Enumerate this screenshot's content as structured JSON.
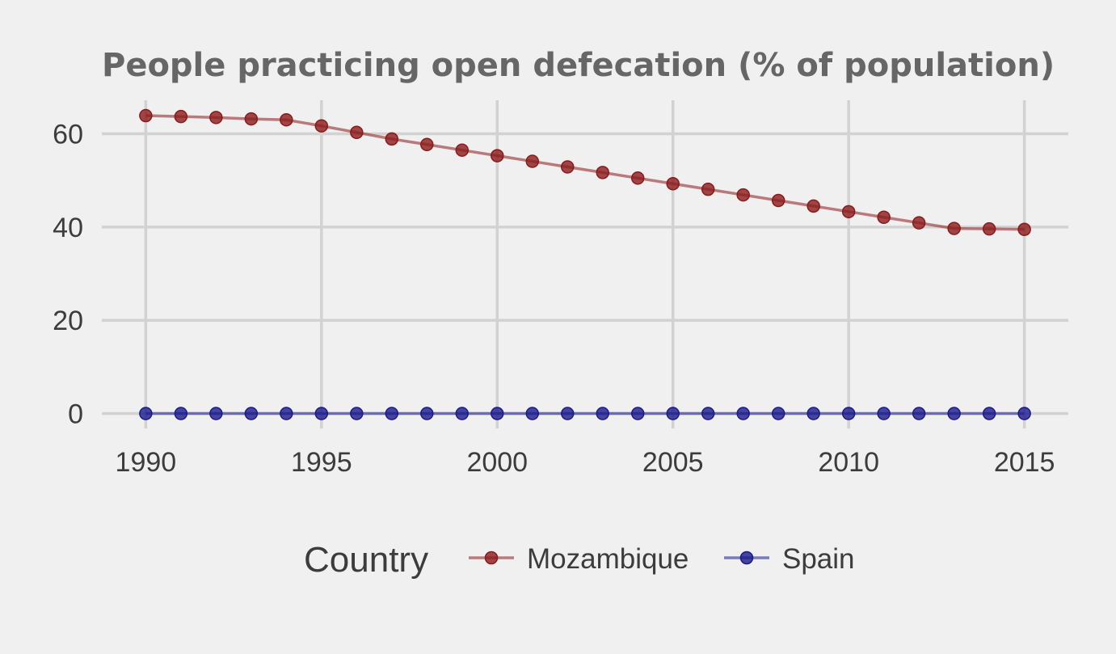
{
  "chart_data": {
    "type": "line",
    "title": "People practicing open defecation (% of population)",
    "xlabel": "",
    "ylabel": "",
    "x": [
      1990,
      1991,
      1992,
      1993,
      1994,
      1995,
      1996,
      1997,
      1998,
      1999,
      2000,
      2001,
      2002,
      2003,
      2004,
      2005,
      2006,
      2007,
      2008,
      2009,
      2010,
      2011,
      2012,
      2013,
      2014,
      2015
    ],
    "x_ticks": [
      "1990",
      "1995",
      "2000",
      "2005",
      "2010",
      "2015"
    ],
    "y_ticks": [
      "0",
      "20",
      "40",
      "60"
    ],
    "xlim": [
      1988.75,
      2016.25
    ],
    "ylim": [
      -3.2,
      67.2
    ],
    "grid": true,
    "legend_title": "Country",
    "legend_position": "bottom",
    "series": [
      {
        "name": "Mozambique",
        "color": "#8b1a1a",
        "values": [
          63.9,
          63.7,
          63.5,
          63.2,
          63.0,
          61.7,
          60.3,
          58.9,
          57.7,
          56.5,
          55.3,
          54.1,
          52.9,
          51.7,
          50.5,
          49.3,
          48.1,
          46.9,
          45.7,
          44.5,
          43.3,
          42.1,
          40.9,
          39.7,
          39.6,
          39.5
        ]
      },
      {
        "name": "Spain",
        "color": "#1a1a8b",
        "values": [
          0,
          0,
          0,
          0,
          0,
          0,
          0,
          0,
          0,
          0,
          0,
          0,
          0,
          0,
          0,
          0,
          0,
          0,
          0,
          0,
          0,
          0,
          0,
          0,
          0,
          0
        ]
      }
    ]
  }
}
